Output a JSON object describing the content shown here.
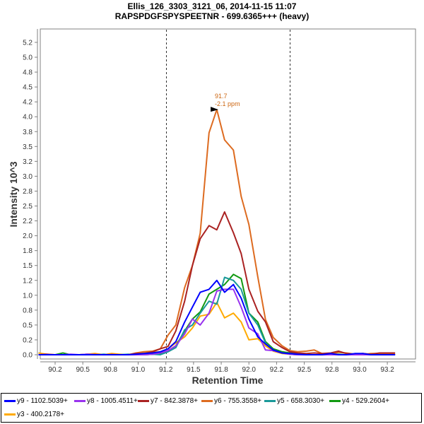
{
  "chart_data": {
    "type": "line",
    "title": "Ellis_126_3303_3121_06, 2014-11-15 11:07",
    "subtitle": "RAPSPDGFSPYSPEETNR - 699.6365+++ (heavy)",
    "xlabel": "Retention Time",
    "ylabel": "Intensity 10^3",
    "xlim": [
      90.05,
      93.45
    ],
    "ylim": [
      0,
      5.45
    ],
    "x_ticks": [
      {
        "value": 90.25,
        "label": "90.2"
      },
      {
        "value": 90.5,
        "label": "90.5"
      },
      {
        "value": 90.75,
        "label": "90.8"
      },
      {
        "value": 91.0,
        "label": "91.0"
      },
      {
        "value": 91.25,
        "label": "91.2"
      },
      {
        "value": 91.5,
        "label": "91.5"
      },
      {
        "value": 91.75,
        "label": "91.8"
      },
      {
        "value": 92.0,
        "label": "92.0"
      },
      {
        "value": 92.25,
        "label": "92.2"
      },
      {
        "value": 92.5,
        "label": "92.5"
      },
      {
        "value": 92.75,
        "label": "92.8"
      },
      {
        "value": 93.0,
        "label": "93.0"
      },
      {
        "value": 93.25,
        "label": "93.2"
      }
    ],
    "y_ticks": [
      {
        "value": 0.0,
        "label": "0.0"
      },
      {
        "value": 0.25,
        "label": "0.2"
      },
      {
        "value": 0.5,
        "label": "0.5"
      },
      {
        "value": 0.75,
        "label": "0.8"
      },
      {
        "value": 1.0,
        "label": "1.0"
      },
      {
        "value": 1.25,
        "label": "1.2"
      },
      {
        "value": 1.5,
        "label": "1.5"
      },
      {
        "value": 1.75,
        "label": "1.8"
      },
      {
        "value": 2.0,
        "label": "2.0"
      },
      {
        "value": 2.25,
        "label": "2.2"
      },
      {
        "value": 2.5,
        "label": "2.5"
      },
      {
        "value": 2.75,
        "label": "2.8"
      },
      {
        "value": 3.0,
        "label": "3.0"
      },
      {
        "value": 3.25,
        "label": "3.2"
      },
      {
        "value": 3.5,
        "label": "3.5"
      },
      {
        "value": 3.75,
        "label": "3.8"
      },
      {
        "value": 4.0,
        "label": "4.0"
      },
      {
        "value": 4.25,
        "label": "4.2"
      },
      {
        "value": 4.5,
        "label": "4.5"
      },
      {
        "value": 4.75,
        "label": "4.8"
      },
      {
        "value": 5.0,
        "label": "5.0"
      },
      {
        "value": 5.25,
        "label": "5.2"
      }
    ],
    "integration_bounds": [
      91.25,
      92.37
    ],
    "annotation": {
      "x": 91.75,
      "y": 4.12,
      "line1": "91.7",
      "line2": "-2.1 ppm",
      "color": "#cc6611"
    },
    "grid": false,
    "legend_position": "bottom",
    "x": [
      90.1,
      90.17,
      90.25,
      90.32,
      90.39,
      90.47,
      90.54,
      90.61,
      90.69,
      90.76,
      90.83,
      90.91,
      90.98,
      91.05,
      91.13,
      91.2,
      91.27,
      91.34,
      91.42,
      91.49,
      91.56,
      91.64,
      91.71,
      91.78,
      91.86,
      91.93,
      92.0,
      92.08,
      92.15,
      92.22,
      92.3,
      92.37,
      92.44,
      92.52,
      92.59,
      92.66,
      92.74,
      92.81,
      92.88,
      92.96,
      93.03,
      93.1,
      93.18,
      93.25,
      93.32
    ],
    "series": [
      {
        "name": "y9 - 1102.5039+",
        "color": "#0000ff",
        "values": [
          0.0,
          0.0,
          0.0,
          0.0,
          0.0,
          0.0,
          0.0,
          0.0,
          0.0,
          0.0,
          0.0,
          0.0,
          0.01,
          0.02,
          0.03,
          0.05,
          0.1,
          0.22,
          0.55,
          0.8,
          1.05,
          1.1,
          1.25,
          1.05,
          1.18,
          0.95,
          0.6,
          0.3,
          0.18,
          0.08,
          0.03,
          0.02,
          0.01,
          0.0,
          0.0,
          0.0,
          0.02,
          0.0,
          0.0,
          0.02,
          0.02,
          0.0,
          0.0,
          0.0,
          0.0
        ]
      },
      {
        "name": "y8 - 1005.4511+",
        "color": "#9933ee",
        "values": [
          0.0,
          0.0,
          0.0,
          0.0,
          0.01,
          0.0,
          0.01,
          0.0,
          0.0,
          0.0,
          0.0,
          0.0,
          0.0,
          0.0,
          0.01,
          0.03,
          0.07,
          0.15,
          0.35,
          0.6,
          0.5,
          0.7,
          1.07,
          1.1,
          1.1,
          0.8,
          0.45,
          0.35,
          0.08,
          0.07,
          0.03,
          0.01,
          0.0,
          0.0,
          0.0,
          0.0,
          0.0,
          0.0,
          0.0,
          0.0,
          0.0,
          0.0,
          0.0,
          0.0,
          0.0
        ]
      },
      {
        "name": "y7 - 842.3878+",
        "color": "#aa2222",
        "values": [
          0.0,
          0.01,
          0.0,
          0.0,
          0.0,
          0.0,
          0.0,
          0.0,
          0.0,
          0.0,
          0.0,
          0.0,
          0.02,
          0.02,
          0.05,
          0.1,
          0.14,
          0.4,
          0.9,
          1.5,
          1.95,
          2.17,
          2.1,
          2.4,
          2.05,
          1.7,
          1.1,
          0.73,
          0.55,
          0.22,
          0.12,
          0.05,
          0.03,
          0.02,
          0.03,
          0.02,
          0.03,
          0.06,
          0.02,
          0.01,
          0.02,
          0.01,
          0.03,
          0.03,
          0.03
        ]
      },
      {
        "name": "y6 - 755.3558+",
        "color": "#dd6b20",
        "values": [
          0.0,
          0.0,
          0.0,
          0.0,
          0.0,
          0.0,
          0.01,
          0.01,
          0.0,
          0.01,
          0.0,
          0.0,
          0.03,
          0.05,
          0.06,
          0.1,
          0.33,
          0.5,
          1.13,
          1.5,
          2.04,
          3.73,
          4.12,
          3.61,
          3.44,
          2.66,
          2.19,
          1.31,
          0.59,
          0.29,
          0.15,
          0.07,
          0.05,
          0.06,
          0.08,
          0.02,
          0.01,
          0.04,
          0.03,
          0.01,
          0.0,
          0.02,
          0.02,
          0.02,
          0.02
        ]
      },
      {
        "name": "y5 - 658.3030+",
        "color": "#1a9999",
        "values": [
          0.0,
          0.0,
          0.0,
          0.0,
          0.0,
          0.0,
          0.01,
          0.0,
          0.01,
          0.0,
          0.0,
          0.01,
          0.0,
          0.0,
          0.01,
          0.0,
          0.05,
          0.12,
          0.42,
          0.5,
          0.7,
          0.9,
          0.85,
          1.3,
          1.25,
          1.1,
          0.7,
          0.5,
          0.2,
          0.08,
          0.03,
          0.01,
          0.0,
          0.0,
          0.0,
          0.0,
          0.0,
          0.01,
          0.0,
          0.0,
          0.0,
          0.0,
          0.0,
          0.0,
          0.0
        ]
      },
      {
        "name": "y4 - 529.2604+",
        "color": "#119911",
        "values": [
          0.0,
          0.0,
          0.0,
          0.03,
          0.0,
          0.0,
          0.0,
          0.0,
          0.0,
          0.0,
          0.0,
          0.0,
          0.0,
          0.0,
          0.01,
          0.02,
          0.06,
          0.15,
          0.4,
          0.6,
          0.72,
          1.02,
          1.1,
          1.18,
          1.35,
          1.28,
          0.7,
          0.55,
          0.22,
          0.1,
          0.05,
          0.03,
          0.01,
          0.0,
          0.0,
          0.0,
          0.0,
          0.0,
          0.0,
          0.0,
          0.0,
          0.0,
          0.0,
          0.03,
          0.0
        ]
      },
      {
        "name": "y3 - 400.2178+",
        "color": "#ffaa00",
        "values": [
          0.03,
          0.01,
          0.0,
          0.0,
          0.0,
          0.0,
          0.01,
          0.02,
          0.0,
          0.02,
          0.01,
          0.0,
          0.02,
          0.03,
          0.04,
          0.05,
          0.1,
          0.2,
          0.3,
          0.45,
          0.65,
          0.68,
          0.88,
          0.62,
          0.7,
          0.55,
          0.25,
          0.27,
          0.15,
          0.06,
          0.02,
          0.01,
          0.0,
          0.0,
          0.0,
          0.0,
          0.0,
          0.0,
          0.0,
          0.0,
          0.0,
          0.0,
          0.0,
          0.0,
          0.0
        ]
      }
    ]
  }
}
